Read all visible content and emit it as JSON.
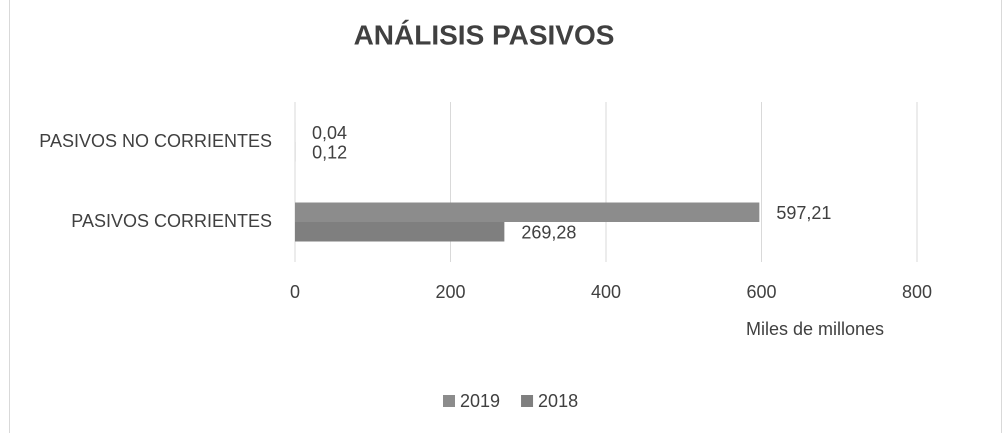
{
  "chart_data": {
    "type": "hbar",
    "title": "ANÁLISIS PASIVOS",
    "categories": [
      "PASIVOS NO CORRIENTES",
      "PASIVOS CORRIENTES"
    ],
    "series": [
      {
        "name": "2019",
        "color": "#8c8c8c",
        "values": [
          0.04,
          597.21
        ],
        "value_labels": [
          "0,04",
          "597,21"
        ]
      },
      {
        "name": "2018",
        "color": "#7f7f7f",
        "values": [
          0.12,
          269.28
        ],
        "value_labels": [
          "0,12",
          "269,28"
        ]
      }
    ],
    "xlim": [
      0,
      800
    ],
    "xticks": [
      0,
      200,
      400,
      600,
      800
    ],
    "xlabel": "Miles de millones",
    "grid": true,
    "legend": "bottom"
  }
}
